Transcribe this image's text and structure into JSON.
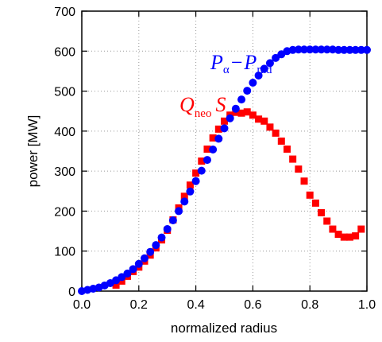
{
  "chart_data": {
    "type": "scatter",
    "xlabel": "normalized radius",
    "ylabel": "power [MW]",
    "xlim": [
      0,
      1
    ],
    "ylim": [
      0,
      700
    ],
    "x_ticks": [
      "0.0",
      "0.2",
      "0.4",
      "0.6",
      "0.8",
      "1.0"
    ],
    "y_ticks": [
      "0",
      "100",
      "200",
      "300",
      "400",
      "500",
      "600",
      "700"
    ],
    "grid": true,
    "colors": {
      "blue": "#0000ff",
      "red": "#ff0000",
      "grid": "#999999",
      "axis": "#000000"
    },
    "annotations": {
      "blue": {
        "P1": "P",
        "sub1": "α",
        "minus": "−",
        "P2": "P",
        "sub2": "rad"
      },
      "red": {
        "Q": "Q",
        "sub": "neo",
        "S": "S"
      }
    },
    "series": [
      {
        "marker": "circle",
        "color": "#0000ff",
        "x": [
          0.0,
          0.02,
          0.04,
          0.06,
          0.08,
          0.1,
          0.12,
          0.14,
          0.16,
          0.18,
          0.2,
          0.22,
          0.24,
          0.26,
          0.28,
          0.3,
          0.32,
          0.34,
          0.36,
          0.38,
          0.4,
          0.42,
          0.44,
          0.46,
          0.48,
          0.5,
          0.52,
          0.54,
          0.56,
          0.58,
          0.6,
          0.62,
          0.64,
          0.66,
          0.68,
          0.7,
          0.72,
          0.74,
          0.76,
          0.78,
          0.8,
          0.82,
          0.84,
          0.86,
          0.88,
          0.9,
          0.92,
          0.94,
          0.96,
          0.98,
          1.0
        ],
        "y": [
          0,
          3,
          6,
          9,
          14,
          20,
          27,
          35,
          44,
          55,
          68,
          82,
          98,
          115,
          134,
          155,
          177,
          200,
          224,
          249,
          275,
          301,
          328,
          354,
          381,
          407,
          432,
          456,
          479,
          501,
          521,
          539,
          556,
          570,
          583,
          592,
          600,
          603,
          604,
          604,
          604,
          604,
          604,
          604,
          604,
          603,
          603,
          603,
          603,
          603,
          603
        ]
      },
      {
        "marker": "square",
        "color": "#ff0000",
        "x": [
          0.12,
          0.14,
          0.16,
          0.18,
          0.2,
          0.22,
          0.24,
          0.26,
          0.28,
          0.3,
          0.32,
          0.34,
          0.36,
          0.38,
          0.4,
          0.42,
          0.44,
          0.46,
          0.48,
          0.5,
          0.52,
          0.54,
          0.56,
          0.58,
          0.6,
          0.62,
          0.64,
          0.66,
          0.68,
          0.7,
          0.72,
          0.74,
          0.76,
          0.78,
          0.8,
          0.82,
          0.84,
          0.86,
          0.88,
          0.9,
          0.92,
          0.94,
          0.96,
          0.98
        ],
        "y": [
          15,
          25,
          37,
          49,
          60,
          75,
          90,
          108,
          128,
          152,
          178,
          208,
          237,
          265,
          295,
          325,
          355,
          383,
          405,
          425,
          440,
          447,
          445,
          448,
          440,
          430,
          425,
          410,
          395,
          375,
          355,
          330,
          305,
          275,
          240,
          220,
          196,
          175,
          155,
          142,
          135,
          135,
          138,
          155
        ]
      }
    ]
  }
}
